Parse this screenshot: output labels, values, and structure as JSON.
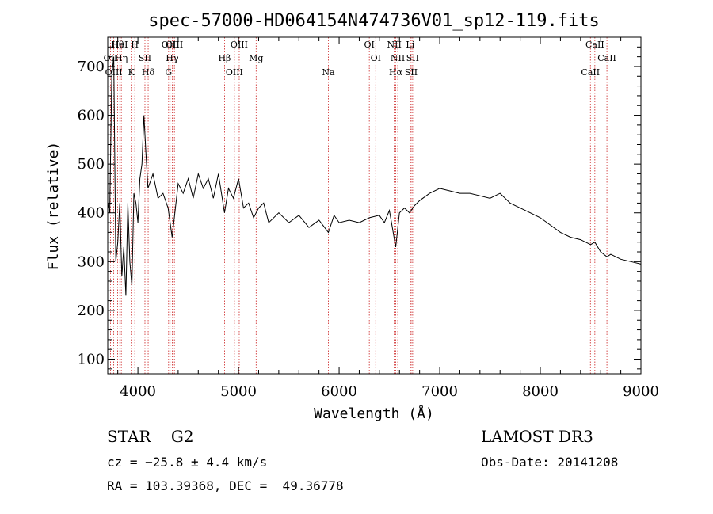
{
  "chart_data": {
    "type": "line",
    "title": "spec-57000-HD064154N474736V01_sp12-119.fits",
    "xlabel": "Wavelength (Å)",
    "ylabel": "Flux (relative)",
    "xlim": [
      3700,
      9000
    ],
    "ylim": [
      70,
      760
    ],
    "x_ticks": [
      4000,
      5000,
      6000,
      7000,
      8000,
      9000
    ],
    "y_ticks": [
      100,
      200,
      300,
      400,
      500,
      600,
      700
    ],
    "grid": false,
    "series": [
      {
        "x": [
          3700,
          3720,
          3740,
          3760,
          3780,
          3800,
          3820,
          3840,
          3860,
          3880,
          3900,
          3920,
          3940,
          3960,
          3980,
          4000,
          4020,
          4040,
          4060,
          4080,
          4100,
          4150,
          4200,
          4250,
          4300,
          4340,
          4400,
          4450,
          4500,
          4550,
          4600,
          4650,
          4700,
          4750,
          4800,
          4861,
          4900,
          4950,
          5000,
          5050,
          5100,
          5150,
          5200,
          5250,
          5300,
          5400,
          5500,
          5600,
          5700,
          5800,
          5893,
          5950,
          6000,
          6100,
          6200,
          6300,
          6400,
          6450,
          6500,
          6563,
          6600,
          6650,
          6700,
          6750,
          6800,
          6900,
          7000,
          7100,
          7200,
          7300,
          7400,
          7500,
          7600,
          7700,
          7800,
          7900,
          8000,
          8100,
          8200,
          8300,
          8400,
          8500,
          8542,
          8600,
          8662,
          8700,
          8800,
          8900,
          9000
        ],
        "y": [
          420,
          400,
          680,
          720,
          300,
          340,
          420,
          270,
          330,
          230,
          420,
          300,
          250,
          440,
          420,
          380,
          470,
          500,
          600,
          520,
          450,
          480,
          430,
          440,
          410,
          350,
          460,
          440,
          470,
          430,
          480,
          450,
          470,
          430,
          480,
          400,
          450,
          430,
          470,
          410,
          420,
          390,
          410,
          420,
          380,
          400,
          380,
          395,
          370,
          385,
          360,
          395,
          380,
          385,
          380,
          390,
          395,
          380,
          405,
          330,
          400,
          410,
          400,
          415,
          425,
          440,
          450,
          445,
          440,
          440,
          435,
          430,
          440,
          420,
          410,
          400,
          390,
          375,
          360,
          350,
          345,
          335,
          340,
          320,
          310,
          315,
          305,
          300,
          295
        ]
      }
    ],
    "lines": [
      {
        "label": "Hθ",
        "x": 3798
      },
      {
        "label": "OII",
        "x": 3727
      },
      {
        "label": "OIII",
        "x": 3760
      },
      {
        "label": "HeI",
        "x": 3820
      },
      {
        "label": "Hη",
        "x": 3835
      },
      {
        "label": "K",
        "x": 3934
      },
      {
        "label": "H",
        "x": 3969
      },
      {
        "label": "SII",
        "x": 4070
      },
      {
        "label": "Hδ",
        "x": 4102
      },
      {
        "label": "OIII",
        "x": 4320
      },
      {
        "label": "Hγ",
        "x": 4341
      },
      {
        "label": "G",
        "x": 4305
      },
      {
        "label": "OIII",
        "x": 4363
      },
      {
        "label": "Hβ",
        "x": 4861
      },
      {
        "label": "OIII",
        "x": 4959
      },
      {
        "label": "OIII",
        "x": 5007
      },
      {
        "label": "Mg",
        "x": 5175
      },
      {
        "label": "Na",
        "x": 5893
      },
      {
        "label": "OI",
        "x": 6300
      },
      {
        "label": "OI",
        "x": 6364
      },
      {
        "label": "Hα",
        "x": 6563
      },
      {
        "label": "NII",
        "x": 6548
      },
      {
        "label": "NII",
        "x": 6583
      },
      {
        "label": "SII",
        "x": 6716
      },
      {
        "label": "Li",
        "x": 6707
      },
      {
        "label": "SII",
        "x": 6731
      },
      {
        "label": "CaII",
        "x": 8498
      },
      {
        "label": "CaII",
        "x": 8542
      },
      {
        "label": "CaII",
        "x": 8662
      }
    ]
  },
  "info": {
    "class_line": "STAR    G2",
    "cz_line": "cz = −25.8 ± 4.4 km/s",
    "radec_line": "RA = 103.39368, DEC =  49.36778",
    "survey": "LAMOST DR3",
    "obs_date": "Obs-Date: 20141208"
  },
  "colors": {
    "line_marker": "#cc2222",
    "spectrum": "#000000"
  }
}
